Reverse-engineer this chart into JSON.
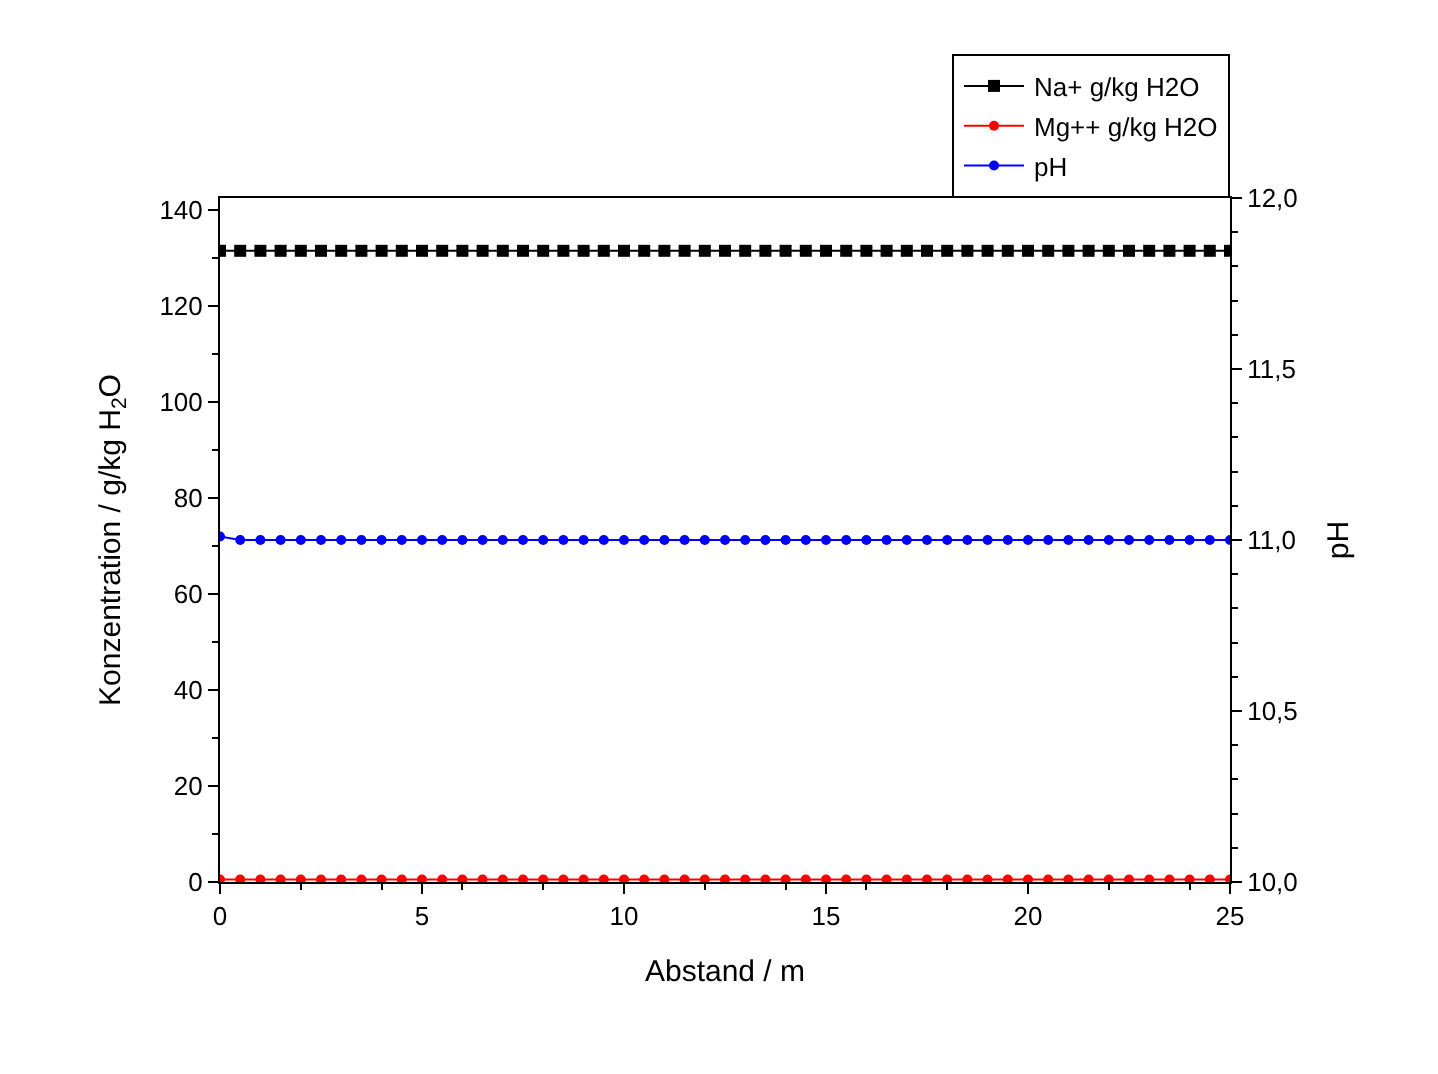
{
  "chart_data": {
    "type": "line",
    "xlabel": "Abstand / m",
    "ylabel": "Konzentration / g/kg H$_{2}$O",
    "y2label": "pH",
    "x": [
      0,
      0.5,
      1,
      1.5,
      2,
      2.5,
      3,
      3.5,
      4,
      4.5,
      5,
      5.5,
      6,
      6.5,
      7,
      7.5,
      8,
      8.5,
      9,
      9.5,
      10,
      10.5,
      11,
      11.5,
      12,
      12.5,
      13,
      13.5,
      14,
      14.5,
      15,
      15.5,
      16,
      16.5,
      17,
      17.5,
      18,
      18.5,
      19,
      19.5,
      20,
      20.5,
      21,
      21.5,
      22,
      22.5,
      23,
      23.5,
      24,
      24.5,
      25
    ],
    "series": [
      {
        "name": "Na+ g/kg H2O",
        "color": "#000000",
        "marker": "square",
        "values": [
          131.5,
          131.5,
          131.5,
          131.5,
          131.5,
          131.5,
          131.5,
          131.5,
          131.5,
          131.5,
          131.5,
          131.5,
          131.5,
          131.5,
          131.5,
          131.5,
          131.5,
          131.5,
          131.5,
          131.5,
          131.5,
          131.5,
          131.5,
          131.5,
          131.5,
          131.5,
          131.5,
          131.5,
          131.5,
          131.5,
          131.5,
          131.5,
          131.5,
          131.5,
          131.5,
          131.5,
          131.5,
          131.5,
          131.5,
          131.5,
          131.5,
          131.5,
          131.5,
          131.5,
          131.5,
          131.5,
          131.5,
          131.5,
          131.5,
          131.5,
          131.5
        ]
      },
      {
        "name": "Mg++ g/kg H2O",
        "color": "#ff0000",
        "marker": "circle",
        "values": [
          0.5,
          0.5,
          0.5,
          0.5,
          0.5,
          0.5,
          0.5,
          0.5,
          0.5,
          0.5,
          0.5,
          0.5,
          0.5,
          0.5,
          0.5,
          0.5,
          0.5,
          0.5,
          0.5,
          0.5,
          0.5,
          0.5,
          0.5,
          0.5,
          0.5,
          0.5,
          0.5,
          0.5,
          0.5,
          0.5,
          0.5,
          0.5,
          0.5,
          0.5,
          0.5,
          0.5,
          0.5,
          0.5,
          0.5,
          0.5,
          0.5,
          0.5,
          0.5,
          0.5,
          0.5,
          0.5,
          0.5,
          0.5,
          0.5,
          0.5,
          0.5
        ]
      },
      {
        "name": "pH",
        "color": "#0000ff",
        "marker": "circle",
        "axis": "y2",
        "values": [
          11.01,
          11,
          11,
          11,
          11,
          11,
          11,
          11,
          11,
          11,
          11,
          11,
          11,
          11,
          11,
          11,
          11,
          11,
          11,
          11,
          11,
          11,
          11,
          11,
          11,
          11,
          11,
          11,
          11,
          11,
          11,
          11,
          11,
          11,
          11,
          11,
          11,
          11,
          11,
          11,
          11,
          11,
          11,
          11,
          11,
          11,
          11,
          11,
          11,
          11,
          11
        ]
      }
    ],
    "xlim": [
      0,
      25
    ],
    "xticks": [
      0,
      5,
      10,
      15,
      20,
      25
    ],
    "ylim": [
      0,
      142.5
    ],
    "yticks": [
      0,
      20,
      40,
      60,
      80,
      100,
      120,
      140
    ],
    "y2lim": [
      10,
      12
    ],
    "y2ticks": [
      {
        "value": 10,
        "label": "10,0"
      },
      {
        "value": 10.5,
        "label": "10,5"
      },
      {
        "value": 11,
        "label": "11,0"
      },
      {
        "value": 11.5,
        "label": "11,5"
      },
      {
        "value": 12,
        "label": "12,0"
      }
    ],
    "legend": "top right",
    "line_style": "solid"
  }
}
